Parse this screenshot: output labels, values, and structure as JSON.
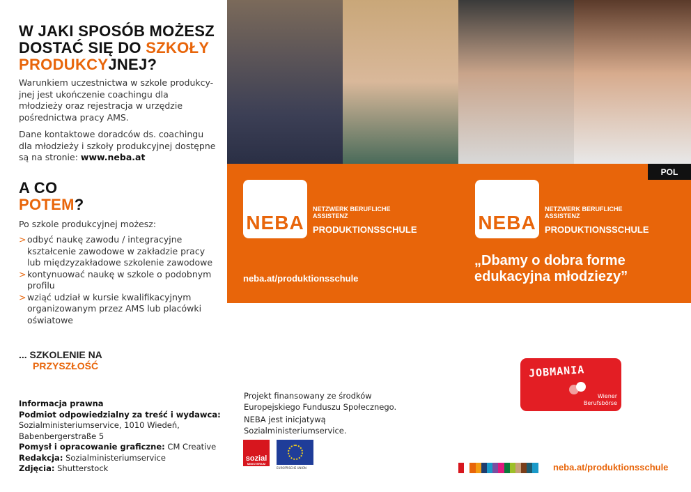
{
  "left": {
    "heading1": {
      "line1": "W JAKI SPOSÓB MOŻESZ",
      "line2a": "DOSTAĆ SIĘ DO ",
      "line2b": "SZKOŁY",
      "line3a": "PRODUKCY",
      "line3b": "JNEJ?"
    },
    "para1": "Warunkiem uczestnictwa w szkole produkcy-jnej jest ukończenie coachingu dla młodzieży oraz rejestracja w urzędzie pośrednictwa pracy AMS.",
    "para2": "Dane kontaktowe doradców ds. coachingu dla młodzieży i szkoły produkcyjnej dostępne są na stronie: ",
    "para2_link": "www.neba.at",
    "heading2": {
      "line1": "A CO",
      "line2a": "POTEM",
      "line2b": "?"
    },
    "intro": "Po szkole produkcyjnej możesz:",
    "bullets": [
      "odbyć naukę zawodu / integracyjne kształcenie zawodowe w zakładzie pracy lub międzyzakładowe szkolenie zawodowe",
      "kontynuować naukę w szkole o podobnym profilu",
      "wziąć udział w kursie kwalifikacyjnym organizowanym przez AMS lub placówki oświatowe"
    ],
    "tagline": {
      "line1": "... SZKOLENIE NA",
      "line2": "PRZYSZŁOŚĆ"
    }
  },
  "legal": {
    "title": "Informacja prawna",
    "publisher_label": "Podmiot odpowiedzialny za treść i wydawca:",
    "publisher": "Sozialministeriumservice, 1010 Wiedeń, Babenbergerstraße 5",
    "design_label": "Pomysł i opracowanie graficzne:",
    "design": " CM Creative",
    "editor_label": "Redakcja:",
    "editor": " Sozialministeriumservice",
    "photos_label": "Zdjęcia:",
    "photos": " Shutterstock"
  },
  "funding": {
    "line1": "Projekt finansowany ze środków Europejskiego Funduszu Społecznego.",
    "line2": "NEBA jest inicjatywą Sozialministeriumservice.",
    "sozial_logo": "sozial",
    "sozial_sub": "MINISTERIUM",
    "eu_label": "EUROPÄISCHE UNION"
  },
  "panel": {
    "lang_badge": "POL",
    "logo_text": "NEBA",
    "org_line1": "NETZWERK BERUFLICHE",
    "org_line2": "ASSISTENZ",
    "program": "PRODUKTIONSSCHULE",
    "url": "neba.at/produktionsschule",
    "quote_line1": "„Dbamy o dobra forme",
    "quote_line2": "edukacyjna młodziezy”"
  },
  "jobmania": {
    "title": "JOBMANIA",
    "sub1": "Wiener",
    "sub2": "Berufsbörse"
  },
  "footer": {
    "url": "neba.at/produktionsschule",
    "strip_colors": [
      "#d7161e",
      "#ffffff",
      "#e8650a",
      "#f39c12",
      "#1d3c6e",
      "#1a9ac9",
      "#7a4ea0",
      "#e0197d",
      "#0a7a3c",
      "#9dbf28",
      "#c89f7a",
      "#7a3e1a",
      "#1d5b6e",
      "#1a9ac9"
    ]
  },
  "colors": {
    "accent": "#e8650a",
    "jobmania_red": "#e31e24",
    "eu_blue": "#1f3d99"
  }
}
